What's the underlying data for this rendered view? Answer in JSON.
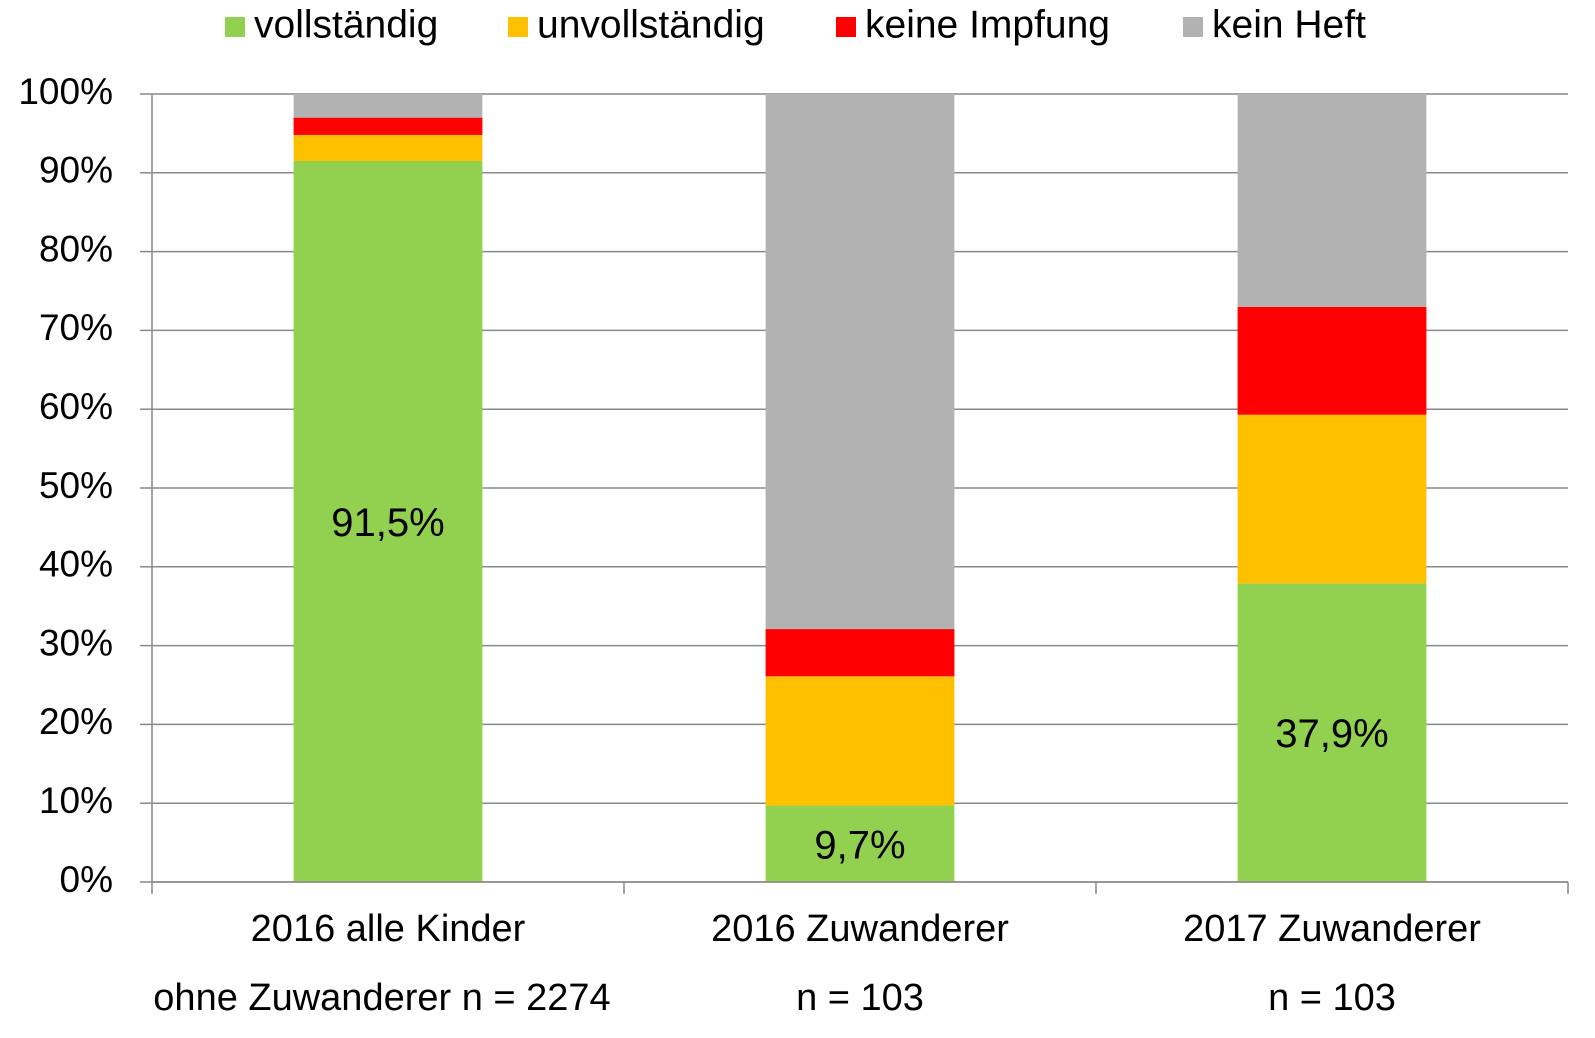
{
  "chart_data": {
    "type": "stacked_bar",
    "categories": [
      "2016 alle Kinder",
      "2016 Zuwanderer",
      "2017 Zuwanderer"
    ],
    "category_sublabels": [
      "ohne Zuwanderer n = 2274",
      "n = 103",
      "n = 103"
    ],
    "series": [
      {
        "name": "vollständig",
        "color": "#92d050",
        "values": [
          91.5,
          9.7,
          37.9
        ],
        "value_labels": [
          "91,5%",
          "9,7%",
          "37,9%"
        ]
      },
      {
        "name": "unvollständig",
        "color": "#ffc000",
        "values": [
          3.3,
          16.4,
          21.4
        ]
      },
      {
        "name": "keine Impfung",
        "color": "#ff0000",
        "values": [
          2.2,
          6.0,
          13.7
        ]
      },
      {
        "name": "kein Heft",
        "color": "#b2b2b2",
        "values": [
          3.0,
          67.9,
          27.0
        ]
      }
    ],
    "ylim": [
      0,
      100
    ],
    "yticks": [
      {
        "value": 0,
        "label": "0%"
      },
      {
        "value": 10,
        "label": "10%"
      },
      {
        "value": 20,
        "label": "20%"
      },
      {
        "value": 30,
        "label": "30%"
      },
      {
        "value": 40,
        "label": "40%"
      },
      {
        "value": 50,
        "label": "50%"
      },
      {
        "value": 60,
        "label": "60%"
      },
      {
        "value": 70,
        "label": "70%"
      },
      {
        "value": 80,
        "label": "80%"
      },
      {
        "value": 90,
        "label": "90%"
      },
      {
        "value": 100,
        "label": "100%"
      }
    ],
    "grid": true,
    "legend": "top"
  }
}
